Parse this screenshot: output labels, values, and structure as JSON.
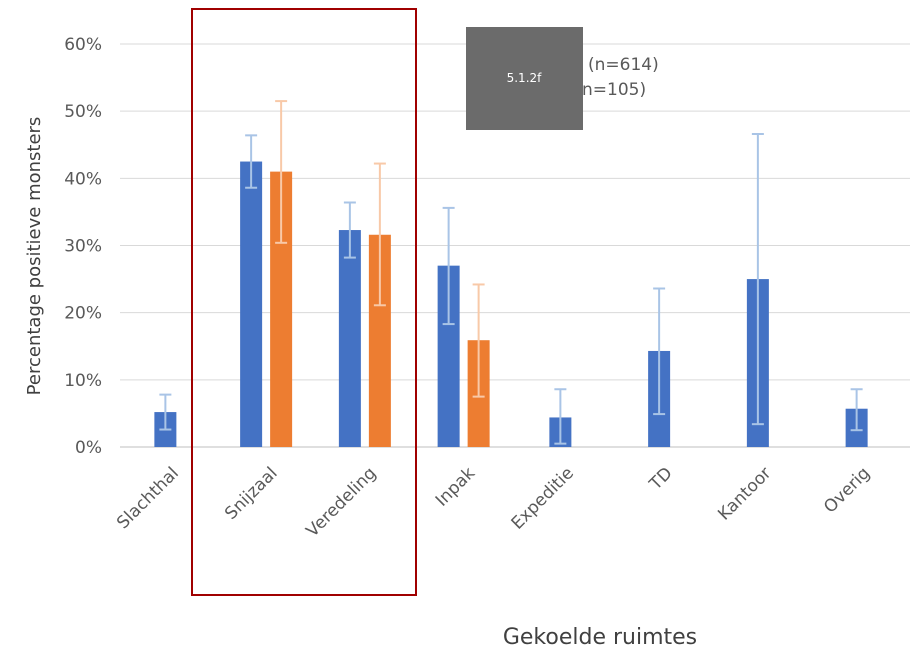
{
  "chart_data": {
    "type": "bar",
    "categories": [
      "Slachthal",
      "Snijzaal",
      "Veredeling",
      "Inpak",
      "Expeditie",
      "TD",
      "Kantoor",
      "Overig"
    ],
    "series": [
      {
        "name": "(n=614)",
        "color": "#4472C4",
        "error_color": "#A9C4E6",
        "values": [
          5.2,
          42.5,
          32.3,
          27.0,
          4.4,
          14.3,
          25.0,
          5.7
        ],
        "err_low": [
          2.6,
          38.6,
          28.2,
          18.3,
          0.5,
          4.9,
          3.4,
          2.5
        ],
        "err_high": [
          7.8,
          46.4,
          36.4,
          35.6,
          8.6,
          23.6,
          46.6,
          8.6
        ]
      },
      {
        "name": "n=105)",
        "color": "#ED7D31",
        "error_color": "#F8C9A8",
        "values": [
          null,
          41.0,
          31.6,
          15.9,
          null,
          null,
          null,
          null
        ],
        "err_low": [
          null,
          30.4,
          21.1,
          7.5,
          null,
          null,
          null,
          null
        ],
        "err_high": [
          null,
          51.5,
          42.2,
          24.2,
          null,
          null,
          null,
          null
        ]
      }
    ],
    "y_ticks": [
      "0%",
      "10%",
      "20%",
      "30%",
      "40%",
      "50%",
      "60%"
    ],
    "ylim": [
      0,
      60
    ],
    "ylabel": "Percentage positieve monsters",
    "xlabel": "Gekoelde ruimtes",
    "grid": true,
    "legend_position": "top-right",
    "highlight_box_categories": [
      "Snijzaal",
      "Veredeling"
    ],
    "highlight_box_color": "#A00000"
  },
  "overlay": {
    "label": "5.1.2f",
    "color": "#6B6B6B"
  }
}
